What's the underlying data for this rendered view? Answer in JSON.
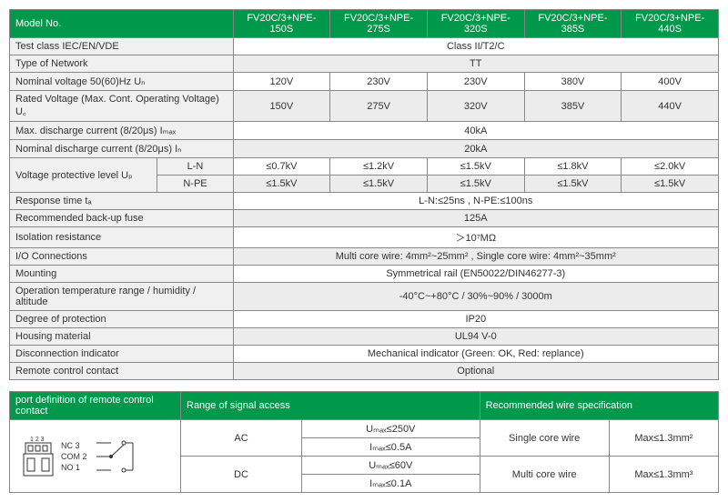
{
  "main": {
    "corner": "Model No.",
    "models": [
      "FV20C/3+NPE-150S",
      "FV20C/3+NPE-275S",
      "FV20C/3+NPE-320S",
      "FV20C/3+NPE-385S",
      "FV20C/3+NPE-440S"
    ],
    "rows": [
      {
        "label": "Test class IEC/EN/VDE",
        "span": "Class II/T2/C"
      },
      {
        "label": "Type of Network",
        "span": "TT",
        "alt": true
      },
      {
        "label": "Nominal voltage 50(60)Hz Uₙ",
        "cells": [
          "120V",
          "230V",
          "230V",
          "380V",
          "400V"
        ]
      },
      {
        "label": "Rated Voltage (Max. Cont. Operating Voltage) U꜀",
        "cells": [
          "150V",
          "275V",
          "320V",
          "385V",
          "440V"
        ],
        "alt": true
      },
      {
        "label": "Max. discharge current (8/20μs) Iₘₐₓ",
        "span": "40kA"
      },
      {
        "label": "Nominal discharge current (8/20μs) Iₙ",
        "span": "20kA",
        "alt": true
      }
    ],
    "vplabel": "Voltage protective level Uₚ",
    "vp": [
      {
        "sub": "L-N",
        "cells": [
          "≤0.7kV",
          "≤1.2kV",
          "≤1.5kV",
          "≤1.8kV",
          "≤2.0kV"
        ]
      },
      {
        "sub": "N-PE",
        "cells": [
          "≤1.5kV",
          "≤1.5kV",
          "≤1.5kV",
          "≤1.5kV",
          "≤1.5kV"
        ],
        "alt": true
      }
    ],
    "rows2": [
      {
        "label": "Response time tₐ",
        "span": "L-N:≤25ns , N-PE:≤100ns"
      },
      {
        "label": "Recommended back-up fuse",
        "span": "125A",
        "alt": true
      },
      {
        "label": "Isolation resistance",
        "span": "＞10⁷MΩ"
      },
      {
        "label": "I/O Connections",
        "span": "Multi core wire: 4mm²~25mm² , Single core wire: 4mm²~35mm²",
        "alt": true
      },
      {
        "label": "Mounting",
        "span": "Symmetrical rail (EN50022/DIN46277-3)"
      },
      {
        "label": "Operation temperature range / humidity / altitude",
        "span": "-40°C~+80°C / 30%~90% / 3000m",
        "alt": true
      },
      {
        "label": "Degree of protection",
        "span": "IP20"
      },
      {
        "label": "Housing material",
        "span": "UL94 V-0",
        "alt": true
      },
      {
        "label": "Disconnection indicator",
        "span": "Mechanical indicator (Green: OK, Red: replance)"
      },
      {
        "label": "Remote control contact",
        "span": "Optional",
        "alt": true
      }
    ]
  },
  "second": {
    "h1": "port definition of remote control contact",
    "h2": "Range of signal access",
    "h3": "Recommended wire specification",
    "pins123": "1 2 3",
    "nc3": "NC 3",
    "com2": "COM 2",
    "no1": "NO 1",
    "ac": "AC",
    "dc": "DC",
    "ac_u": "Uₘₐₓ≤250V",
    "ac_i": "Iₘₐₓ≤0.5A",
    "dc_u": "Uₘₐₓ≤60V",
    "dc_i": "Iₘₐₓ≤0.1A",
    "single": "Single core wire",
    "multi": "Multi core wire",
    "max1": "Max≤1.3mm²",
    "max2": "Max≤1.3mm³"
  }
}
